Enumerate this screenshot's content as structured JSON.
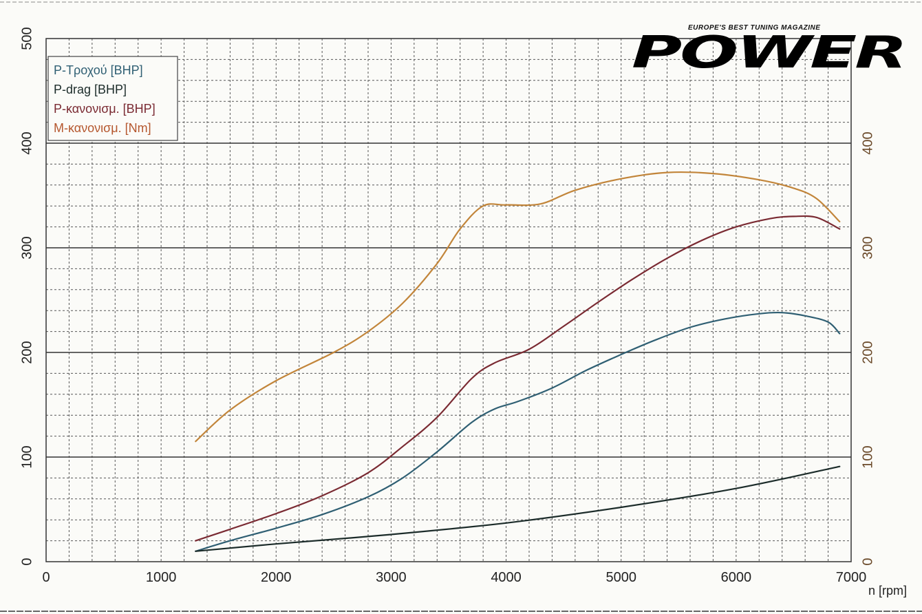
{
  "logo": {
    "tagline": "EUROPE'S BEST TUNING MAGAZINE",
    "name": "POWER"
  },
  "chart_data": {
    "type": "line",
    "xlabel": "n [rpm]",
    "xlim": [
      0,
      7000
    ],
    "x_ticks": [
      0,
      1000,
      2000,
      3000,
      4000,
      5000,
      6000,
      7000
    ],
    "ylim": [
      0,
      500
    ],
    "y_ticks": [
      0,
      100,
      200,
      300,
      400,
      500
    ],
    "y2lim": [
      0,
      500
    ],
    "y2_ticks": [
      0,
      100,
      200,
      300,
      400
    ],
    "grid": true,
    "legend_position": "top-left",
    "series": [
      {
        "name": "P-Τροχού [BHP]",
        "color": "#2f5f73",
        "x": [
          1300,
          1600,
          2000,
          2400,
          2800,
          3100,
          3400,
          3700,
          3900,
          4100,
          4400,
          4700,
          5000,
          5300,
          5600,
          5900,
          6200,
          6400,
          6600,
          6800,
          6900
        ],
        "y": [
          10,
          20,
          32,
          45,
          62,
          80,
          105,
          133,
          146,
          153,
          166,
          183,
          198,
          212,
          224,
          232,
          237,
          238,
          235,
          229,
          218
        ]
      },
      {
        "name": "P-drag [BHP]",
        "color": "#1c2c2a",
        "x": [
          1300,
          2000,
          3000,
          4000,
          5000,
          6000,
          6900
        ],
        "y": [
          10,
          17,
          26,
          37,
          52,
          70,
          91
        ]
      },
      {
        "name": "P-κανονισμ. [BHP]",
        "color": "#7a2a32",
        "x": [
          1300,
          1600,
          2000,
          2400,
          2800,
          3100,
          3400,
          3700,
          3900,
          4200,
          4500,
          4800,
          5100,
          5400,
          5700,
          6000,
          6300,
          6500,
          6700,
          6900
        ],
        "y": [
          20,
          31,
          46,
          63,
          85,
          110,
          138,
          175,
          190,
          203,
          225,
          248,
          270,
          290,
          307,
          320,
          328,
          330,
          329,
          318
        ]
      },
      {
        "name": "M-κανονισμ. [Nm]",
        "color": "#c2853a",
        "x": [
          1300,
          1600,
          2000,
          2500,
          2800,
          3100,
          3400,
          3600,
          3800,
          4000,
          4300,
          4600,
          5000,
          5400,
          5800,
          6200,
          6500,
          6700,
          6900
        ],
        "y": [
          115,
          145,
          173,
          200,
          220,
          247,
          285,
          318,
          340,
          341,
          342,
          355,
          366,
          372,
          371,
          365,
          357,
          347,
          325
        ]
      }
    ]
  }
}
